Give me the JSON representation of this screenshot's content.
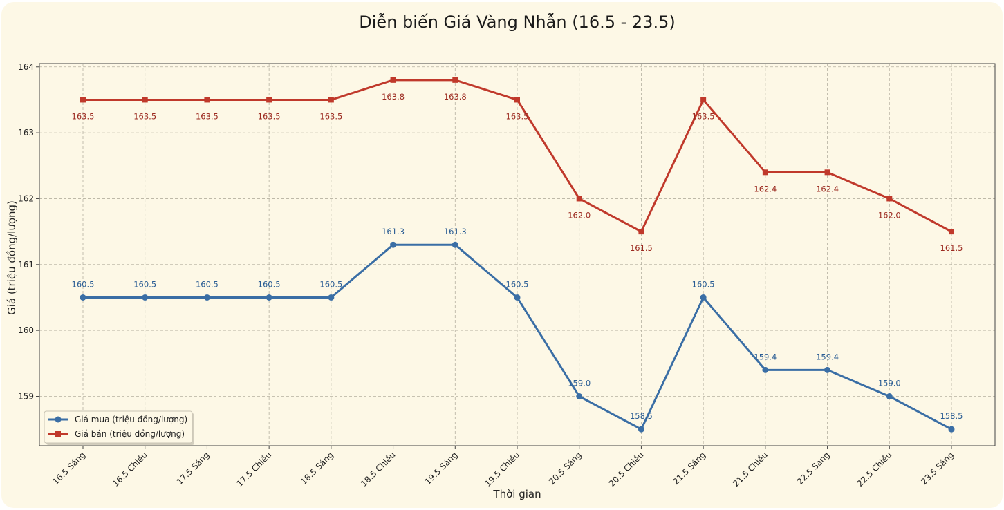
{
  "chart_data": {
    "type": "line",
    "title": "Diễn biến Giá Vàng Nhẫn (16.5 - 23.5)",
    "xlabel": "Thời gian",
    "ylabel": "Giá (triệu đồng/lượng)",
    "categories": [
      "16.5 Sáng",
      "16.5 Chiều",
      "17.5 Sáng",
      "17.5 Chiều",
      "18.5 Sáng",
      "18.5 Chiều",
      "19.5 Sáng",
      "19.5 Chiều",
      "20.5 Sáng",
      "20.5 Chiều",
      "21.5 Sáng",
      "21.5 Chiều",
      "22.5 Sáng",
      "22.5 Chiều",
      "23.5 Sáng"
    ],
    "ylim": [
      158.25,
      164.05
    ],
    "yticks": [
      159,
      160,
      161,
      162,
      163,
      164
    ],
    "grid": true,
    "legend_position": "lower-left",
    "series": [
      {
        "name": "Giá mua (triệu đồng/lượng)",
        "color": "#3a6ea5",
        "marker": "circle",
        "values": [
          160.5,
          160.5,
          160.5,
          160.5,
          160.5,
          161.3,
          161.3,
          160.5,
          159.0,
          158.5,
          160.5,
          159.4,
          159.4,
          159.0,
          158.5
        ],
        "labels": [
          "160.5",
          "160.5",
          "160.5",
          "160.5",
          "160.5",
          "161.3",
          "161.3",
          "160.5",
          "159.0",
          "158.5",
          "160.5",
          "159.4",
          "159.4",
          "159.0",
          "158.5"
        ],
        "label_side": "above"
      },
      {
        "name": "Giá bán (triệu đồng/lượng)",
        "color": "#c0392b",
        "marker": "square",
        "values": [
          163.5,
          163.5,
          163.5,
          163.5,
          163.5,
          163.8,
          163.8,
          163.5,
          162.0,
          161.5,
          163.5,
          162.4,
          162.4,
          162.0,
          161.5
        ],
        "labels": [
          "163.5",
          "163.5",
          "163.5",
          "163.5",
          "163.5",
          "163.8",
          "163.8",
          "163.5",
          "162.0",
          "161.5",
          "163.5",
          "162.4",
          "162.4",
          "162.0",
          "161.5"
        ],
        "label_side": "below"
      }
    ]
  }
}
